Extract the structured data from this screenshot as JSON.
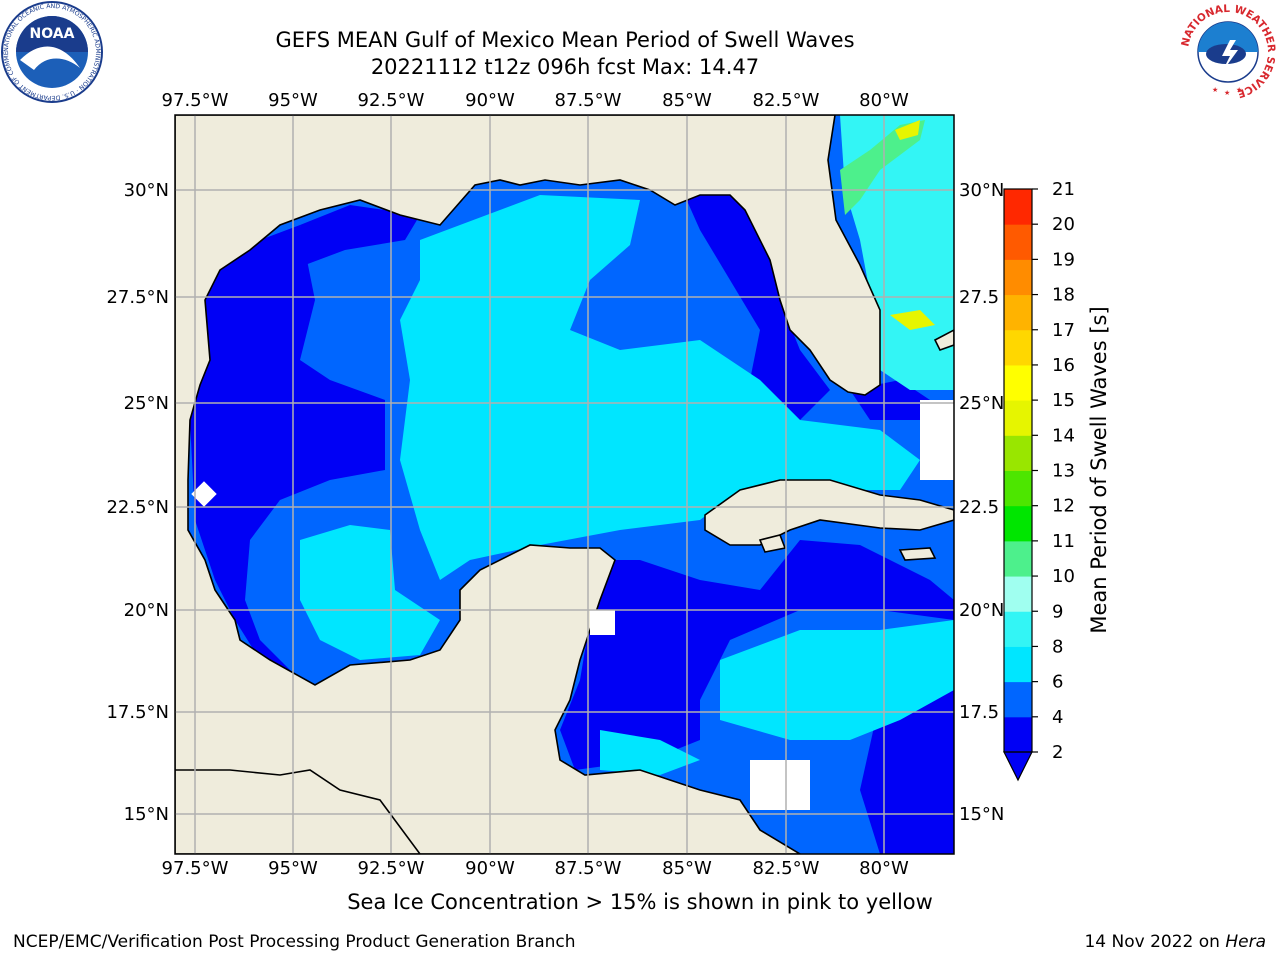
{
  "header": {
    "title_line1": "GEFS MEAN Gulf of Mexico Mean Period of Swell Waves",
    "title_line2": "20221112 t12z 096h fcst   Max: 14.47"
  },
  "map": {
    "lon_ticks": [
      "97.5°W",
      "95°W",
      "92.5°W",
      "90°W",
      "87.5°W",
      "85°W",
      "82.5°W",
      "80°W"
    ],
    "lat_ticks_left": [
      "30°N",
      "27.5°N",
      "25°N",
      "22.5°N",
      "20°N",
      "17.5°N",
      "15°N"
    ],
    "lat_ticks_right": [
      "30°N",
      "27.5",
      "25°N",
      "22.5",
      "20°N",
      "17.5",
      "15°N"
    ],
    "land_color": "#efecdc",
    "grid_color": "#b0b0b0"
  },
  "colorbar": {
    "label": "Mean Period of Swell Waves [s]",
    "ticks": [
      "2",
      "4",
      "6",
      "8",
      "9",
      "10",
      "11",
      "12",
      "13",
      "14",
      "15",
      "16",
      "17",
      "18",
      "19",
      "20",
      "21"
    ],
    "colors": [
      "#0000f5",
      "#0066ff",
      "#00e6ff",
      "#33f5f5",
      "#a0fff0",
      "#4df08c",
      "#00e600",
      "#4de600",
      "#99e600",
      "#e6f500",
      "#ffff00",
      "#ffd700",
      "#ffb300",
      "#ff8c00",
      "#ff5a00",
      "#ff2800"
    ]
  },
  "footer": {
    "caption": "Sea Ice Concentration > 15% is shown in pink to yellow",
    "credit_left": "NCEP/EMC/Verification Post Processing Product Generation Branch",
    "credit_right_date": "14 Nov 2022 on",
    "credit_right_host": "Hera"
  },
  "logos": {
    "noaa_text": "NOAA",
    "noaa_ring_text": "NATIONAL OCEANIC AND ATMOSPHERIC ADMINISTRATION · U.S. DEPARTMENT OF COMMERCE",
    "nws_ring_text": "NATIONAL WEATHER SERVICE"
  }
}
